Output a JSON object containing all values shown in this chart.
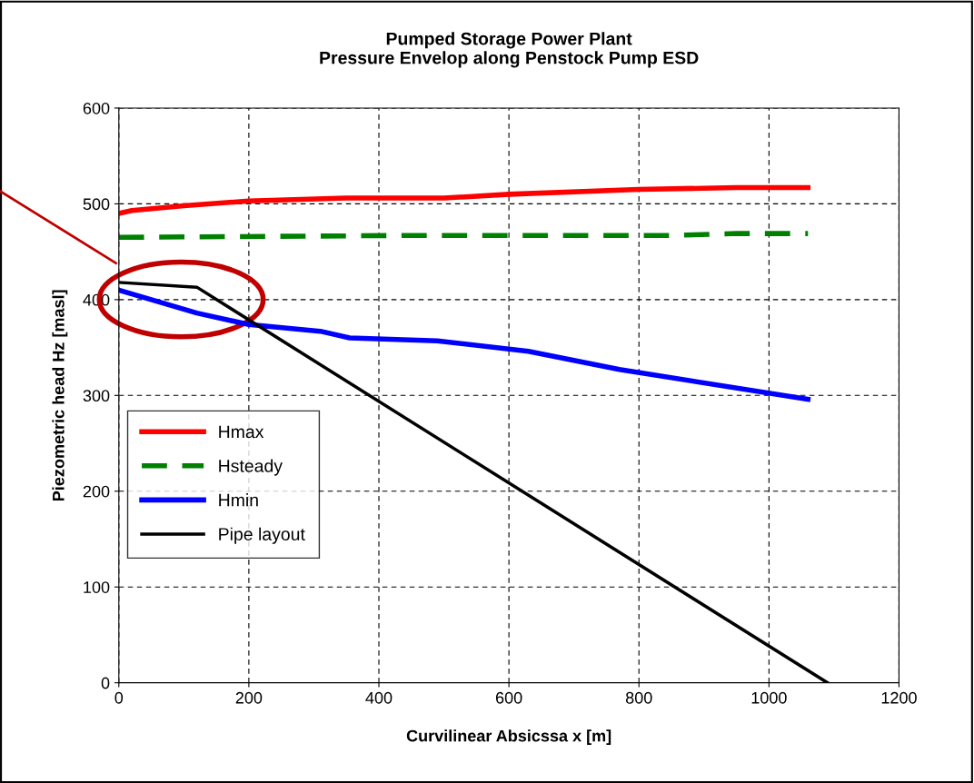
{
  "chart_data": {
    "type": "line",
    "title": "Pumped Storage Power Plant\nPressure Envelop along Penstock Pump ESD",
    "xlabel": "Curvilinear Absicssa x [m]",
    "ylabel": "Piezometric head Hz [masl]",
    "series": [
      {
        "name": "Hmax",
        "color": "#ff0000",
        "line_style": "solid",
        "x": [
          0,
          20,
          100,
          200,
          350,
          500,
          600,
          800,
          950,
          1060
        ],
        "values": [
          490,
          493,
          498,
          503,
          506,
          506,
          510,
          515,
          517,
          517
        ]
      },
      {
        "name": "Hsteady",
        "color": "#008000",
        "line_style": "dashed",
        "x": [
          0,
          450,
          850,
          950,
          1060
        ],
        "values": [
          465,
          467,
          467,
          469,
          469
        ]
      },
      {
        "name": "Hmin",
        "color": "#0000ff",
        "line_style": "solid",
        "x": [
          0,
          120,
          200,
          310,
          355,
          490,
          630,
          770,
          1060
        ],
        "values": [
          410,
          386,
          374,
          367,
          360,
          357,
          346,
          327,
          296
        ]
      },
      {
        "name": "Pipe layout",
        "color": "#000000",
        "line_style": "solid",
        "x": [
          0,
          120,
          1090
        ],
        "values": [
          418,
          413,
          0
        ]
      }
    ],
    "xlim": [
      0,
      1200
    ],
    "xticks": [
      0,
      200,
      400,
      600,
      800,
      1000,
      1200
    ],
    "ylim": [
      0,
      600
    ],
    "yticks": [
      0,
      100,
      200,
      300,
      400,
      500,
      600
    ],
    "grid": true,
    "legend": "left",
    "marker": "none"
  }
}
